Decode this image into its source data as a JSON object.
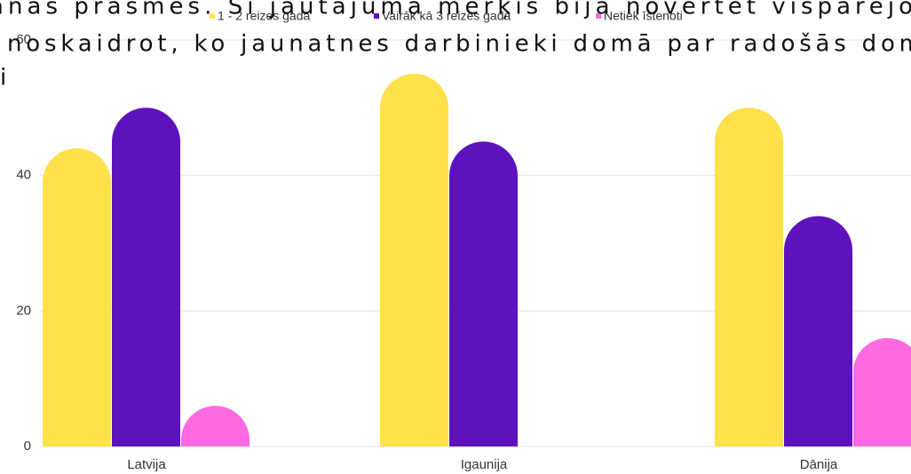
{
  "chart_data": {
    "type": "bar",
    "categories": [
      "Latvija",
      "Igaunija",
      "Dānija"
    ],
    "series": [
      {
        "name": "1 - 2 reizes gadā",
        "color": "#ffe14a",
        "values": [
          44,
          55,
          50
        ]
      },
      {
        "name": "Vairāk kā 3 reizes gadā",
        "color": "#5e12be",
        "values": [
          50,
          45,
          34
        ]
      },
      {
        "name": "Netiek īstenoti",
        "color": "#ff6ae0",
        "values": [
          6,
          0,
          16
        ]
      }
    ],
    "ylim": [
      0,
      60
    ],
    "yticks": [
      0,
      20,
      40,
      60
    ],
    "grid": true,
    "legend": "top"
  },
  "overlay_text": [
    "anas prasmes. Šī jautājuma mērķis bija novērtēt vispārējo",
    "noskaidrot, ko jaunatnes darbinieki domā par radošās dom",
    "i"
  ]
}
